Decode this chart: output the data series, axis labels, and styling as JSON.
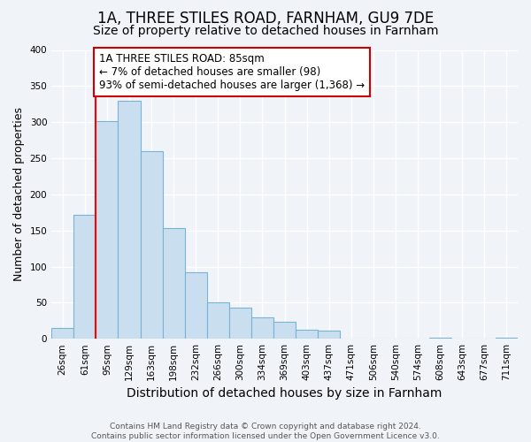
{
  "title": "1A, THREE STILES ROAD, FARNHAM, GU9 7DE",
  "subtitle": "Size of property relative to detached houses in Farnham",
  "xlabel": "Distribution of detached houses by size in Farnham",
  "ylabel": "Number of detached properties",
  "bin_labels": [
    "26sqm",
    "61sqm",
    "95sqm",
    "129sqm",
    "163sqm",
    "198sqm",
    "232sqm",
    "266sqm",
    "300sqm",
    "334sqm",
    "369sqm",
    "403sqm",
    "437sqm",
    "471sqm",
    "506sqm",
    "540sqm",
    "574sqm",
    "608sqm",
    "643sqm",
    "677sqm",
    "711sqm"
  ],
  "bar_heights": [
    15,
    172,
    302,
    330,
    260,
    153,
    92,
    50,
    43,
    29,
    23,
    13,
    11,
    0,
    0,
    0,
    0,
    2,
    0,
    0,
    2
  ],
  "bar_color": "#c9dff0",
  "bar_edge_color": "#7ab3d3",
  "property_line_label": "1A THREE STILES ROAD: 85sqm",
  "annotation_smaller": "← 7% of detached houses are smaller (98)",
  "annotation_larger": "93% of semi-detached houses are larger (1,368) →",
  "annotation_box_color": "#ffffff",
  "annotation_box_edge_color": "#cc0000",
  "ylim": [
    0,
    400
  ],
  "yticks": [
    0,
    50,
    100,
    150,
    200,
    250,
    300,
    350,
    400
  ],
  "footer_line1": "Contains HM Land Registry data © Crown copyright and database right 2024.",
  "footer_line2": "Contains public sector information licensed under the Open Government Licence v3.0.",
  "background_color": "#f0f4f8",
  "title_fontsize": 12,
  "subtitle_fontsize": 10,
  "xlabel_fontsize": 10,
  "ylabel_fontsize": 9,
  "tick_fontsize": 7.5,
  "annotation_fontsize": 8.5
}
